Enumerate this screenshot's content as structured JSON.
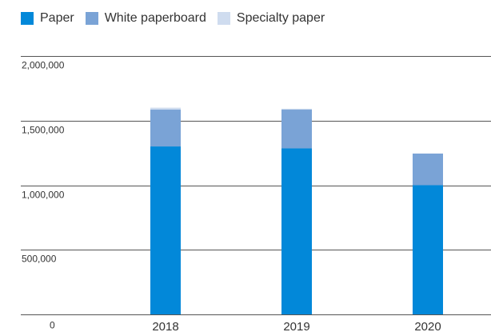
{
  "chart_data": {
    "type": "bar",
    "stacked": true,
    "categories": [
      "2018",
      "2019",
      "2020"
    ],
    "series": [
      {
        "name": "Paper",
        "color": "#0288d9",
        "values": [
          1300000,
          1285000,
          1000000
        ]
      },
      {
        "name": "White paperboard",
        "color": "#7aa3d6",
        "values": [
          285000,
          300000,
          245000
        ]
      },
      {
        "name": "Specialty paper",
        "color": "#cfdcef",
        "values": [
          15000,
          7000,
          0
        ]
      }
    ],
    "yticks": [
      0,
      500000,
      1000000,
      1500000,
      2000000
    ],
    "ytick_labels": [
      "0",
      "500,000",
      "1,000,000",
      "1,500,000",
      "2,000,000"
    ],
    "ylim": [
      0,
      2000000
    ],
    "grid": true,
    "legend_position": "top-left",
    "title": "",
    "xlabel": "",
    "ylabel": ""
  }
}
